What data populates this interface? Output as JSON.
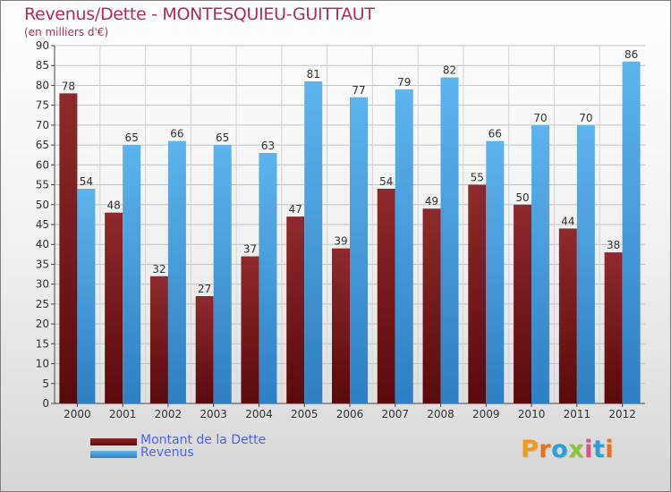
{
  "header": {
    "title": "Revenus/Dette - MONTESQUIEU-GUITTAUT",
    "subtitle": "(en milliers d'€)"
  },
  "colors": {
    "dette": "#7a1a1c",
    "revenus": "#3f98dc",
    "title": "#b02a5e",
    "legend_text": "#4c63f0"
  },
  "chart_data": {
    "type": "bar",
    "title": "Revenus/Dette - MONTESQUIEU-GUITTAUT",
    "subtitle": "(en milliers d'€)",
    "categories": [
      "2000",
      "2001",
      "2002",
      "2003",
      "2004",
      "2005",
      "2006",
      "2007",
      "2008",
      "2009",
      "2010",
      "2011",
      "2012"
    ],
    "series": [
      {
        "name": "Montant de la Dette",
        "values": [
          78,
          48,
          32,
          27,
          37,
          47,
          39,
          54,
          49,
          55,
          50,
          44,
          38
        ]
      },
      {
        "name": "Revenus",
        "values": [
          54,
          65,
          66,
          65,
          63,
          81,
          77,
          79,
          82,
          66,
          70,
          70,
          86
        ]
      }
    ],
    "ylim": [
      0,
      90
    ],
    "yticks": [
      0,
      5,
      10,
      15,
      20,
      25,
      30,
      35,
      40,
      45,
      50,
      55,
      60,
      65,
      70,
      75,
      80,
      85,
      90
    ],
    "grid": true,
    "legend_position": "bottom-left",
    "data_labels": true
  },
  "legend": {
    "items": [
      {
        "label": "Montant de la Dette"
      },
      {
        "label": "Revenus"
      }
    ]
  },
  "logo": {
    "text": "Proxiti"
  }
}
